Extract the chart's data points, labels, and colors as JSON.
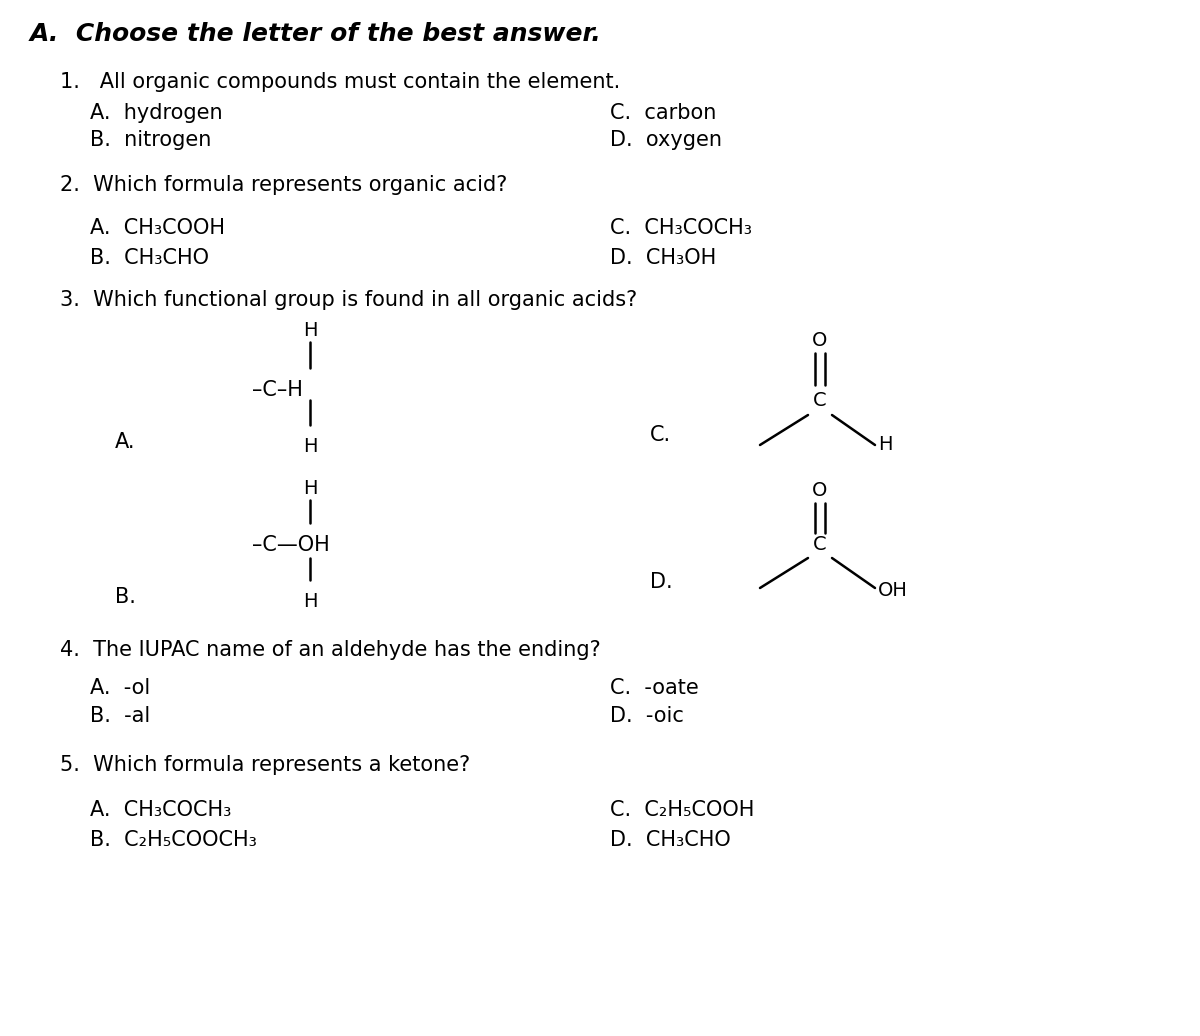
{
  "bg_color": "#ffffff",
  "text_color": "#000000",
  "title": "A.  Choose the letter of the best answer.",
  "q1": "1.   All organic compounds must contain the element.",
  "q1_A": "A.  hydrogen",
  "q1_C": "C.  carbon",
  "q1_B": "B.  nitrogen",
  "q1_D": "D.  oxygen",
  "q2": "2.  Which formula represents organic acid?",
  "q2_A": "A.  CH₃COOH",
  "q2_C": "C.  CH₃COCH₃",
  "q2_B": "B.  CH₃CHO",
  "q2_D": "D.  CH₃OH",
  "q3": "3.  Which functional group is found in all organic acids?",
  "q3_A_label": "A.",
  "q3_B_label": "B.",
  "q3_C_label": "C.",
  "q3_D_label": "D.",
  "q4": "4.  The IUPAC name of an aldehyde has the ending?",
  "q4_A": "A.  -ol",
  "q4_C": "C.  -oate",
  "q4_B": "B.  -al",
  "q4_D": "D.  -oic",
  "q5": "5.  Which formula represents a ketone?",
  "q5_A": "A.  CH₃COCH₃",
  "q5_C": "C.  C₂H₅COOH",
  "q5_B": "B.  C₂H₅COOCH₃",
  "q5_D": "D.  CH₃CHO"
}
